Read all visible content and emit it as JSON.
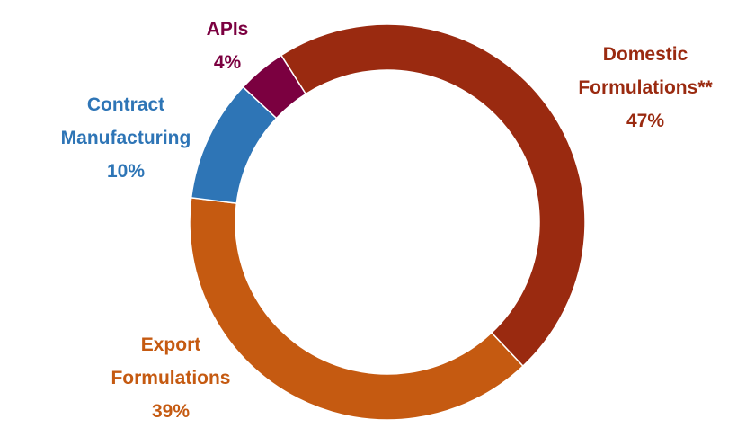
{
  "chart_data": {
    "type": "donut",
    "categories": [
      "Domestic Formulations**",
      "Export Formulations",
      "Contract Manufacturing",
      "APIs"
    ],
    "values": [
      47,
      39,
      10,
      4
    ],
    "value_labels": [
      "47%",
      "39%",
      "10%",
      "4%"
    ],
    "colors": [
      "#9a2a10",
      "#c55a11",
      "#2e75b6",
      "#7b0040"
    ]
  }
}
